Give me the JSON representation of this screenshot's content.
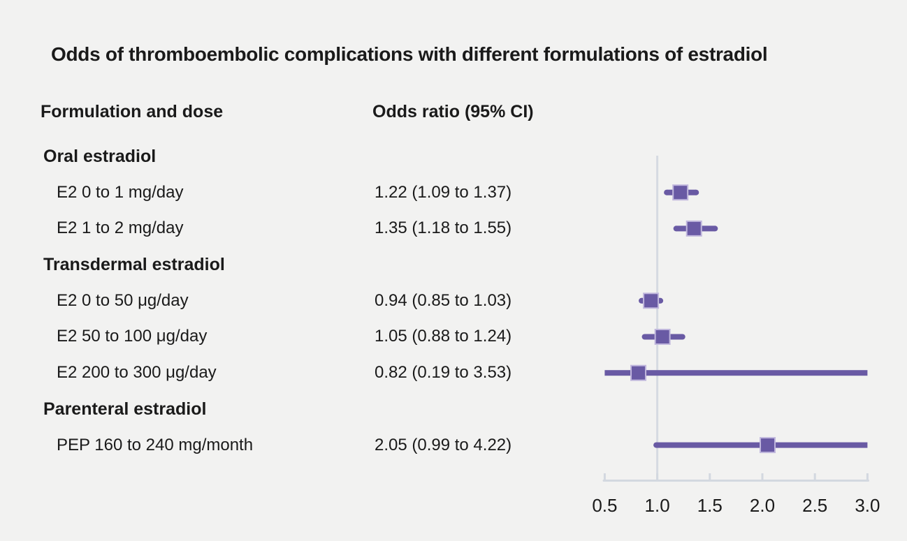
{
  "title": "Odds of thromboembolic complications with different formulations of estradiol",
  "columns": {
    "formulation": "Formulation and dose",
    "odds_ratio": "Odds ratio (95% CI)"
  },
  "colors": {
    "background": "#f2f2f1",
    "text": "#1a1a1a",
    "marker": "#695aa4",
    "marker_edge": "#c0b7dd",
    "axis": "#d3d8e0",
    "reference_line": "#d6dae2"
  },
  "chart_data": {
    "type": "forest",
    "title": "Odds of thromboembolic complications with different formulations of estradiol",
    "xlabel": "",
    "x_axis": {
      "min": 0.5,
      "max": 3.0,
      "ticks": [
        0.5,
        1.0,
        1.5,
        2.0,
        2.5,
        3.0
      ],
      "tick_labels": [
        "0.5",
        "1.0",
        "1.5",
        "2.0",
        "2.5",
        "3.0"
      ],
      "reference_line": 1.0
    },
    "rows": [
      {
        "kind": "section",
        "label": "Oral estradiol"
      },
      {
        "kind": "item",
        "label": "E2 0 to 1 mg/day",
        "display": "1.22 (1.09 to 1.37)",
        "or": 1.22,
        "low": 1.09,
        "high": 1.37
      },
      {
        "kind": "item",
        "label": "E2 1 to 2 mg/day",
        "display": "1.35 (1.18 to 1.55)",
        "or": 1.35,
        "low": 1.18,
        "high": 1.55
      },
      {
        "kind": "section",
        "label": "Transdermal estradiol"
      },
      {
        "kind": "item",
        "label": "E2 0 to 50 μg/day",
        "display": "0.94 (0.85 to 1.03)",
        "or": 0.94,
        "low": 0.85,
        "high": 1.03
      },
      {
        "kind": "item",
        "label": "E2 50 to 100 μg/day",
        "display": "1.05 (0.88 to 1.24)",
        "or": 1.05,
        "low": 0.88,
        "high": 1.24
      },
      {
        "kind": "item",
        "label": "E2 200 to 300 μg/day",
        "display": "0.82 (0.19 to 3.53)",
        "or": 0.82,
        "low": 0.19,
        "high": 3.53
      },
      {
        "kind": "section",
        "label": "Parenteral estradiol"
      },
      {
        "kind": "item",
        "label": "PEP 160 to 240 mg/month",
        "display": "2.05 (0.99 to 4.22)",
        "or": 2.05,
        "low": 0.99,
        "high": 4.22
      }
    ]
  }
}
